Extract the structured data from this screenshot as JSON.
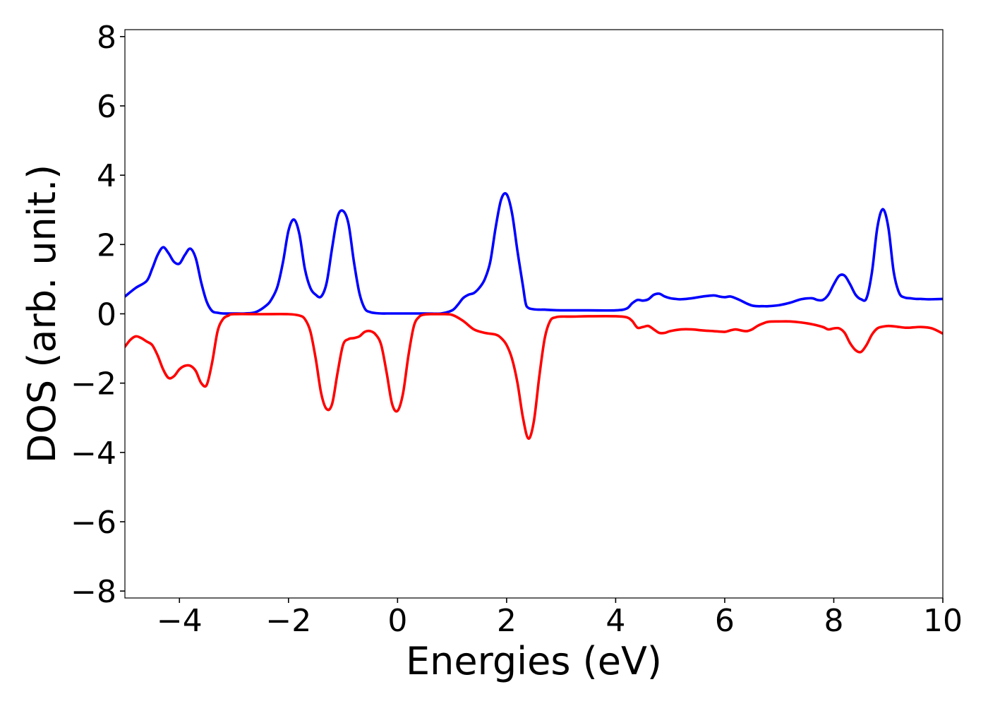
{
  "chart_data": {
    "type": "line",
    "title": "",
    "xlabel": "Energies (eV)",
    "ylabel": "DOS (arb. unit.)",
    "xlim": [
      -5,
      10
    ],
    "ylim": [
      -8.2,
      8.2
    ],
    "grid": false,
    "legend": "none",
    "xticks": [
      -4,
      -2,
      0,
      2,
      4,
      6,
      8,
      10
    ],
    "xtick_labels": [
      "−4",
      "−2",
      "0",
      "2",
      "4",
      "6",
      "8",
      "10"
    ],
    "yticks": [
      -8,
      -6,
      -4,
      -2,
      0,
      2,
      4,
      6,
      8
    ],
    "ytick_labels": [
      "−8",
      "−6",
      "−4",
      "−2",
      "0",
      "2",
      "4",
      "6",
      "8"
    ],
    "series": [
      {
        "color": "#0000ff",
        "x": [
          -5.0,
          -4.8,
          -4.6,
          -4.5,
          -4.4,
          -4.3,
          -4.2,
          -4.1,
          -4.0,
          -3.9,
          -3.8,
          -3.7,
          -3.6,
          -3.5,
          -3.4,
          -3.3,
          -3.2,
          -3.1,
          -3.0,
          -2.8,
          -2.6,
          -2.4,
          -2.3,
          -2.2,
          -2.1,
          -2.0,
          -1.9,
          -1.8,
          -1.7,
          -1.6,
          -1.5,
          -1.4,
          -1.3,
          -1.2,
          -1.1,
          -1.0,
          -0.9,
          -0.8,
          -0.7,
          -0.6,
          -0.5,
          -0.4,
          -0.3,
          -0.2,
          -0.1,
          0.0,
          0.5,
          0.8,
          1.0,
          1.1,
          1.2,
          1.3,
          1.4,
          1.5,
          1.6,
          1.7,
          1.8,
          1.9,
          2.0,
          2.1,
          2.2,
          2.3,
          2.35,
          2.4,
          2.5,
          2.6,
          2.7,
          2.8,
          3.0,
          3.5,
          4.0,
          4.2,
          4.3,
          4.4,
          4.5,
          4.6,
          4.7,
          4.8,
          4.9,
          5.0,
          5.1,
          5.2,
          5.4,
          5.6,
          5.8,
          5.9,
          6.0,
          6.1,
          6.2,
          6.3,
          6.4,
          6.5,
          6.6,
          6.7,
          6.8,
          7.0,
          7.2,
          7.4,
          7.6,
          7.7,
          7.8,
          7.9,
          8.0,
          8.1,
          8.2,
          8.3,
          8.4,
          8.5,
          8.6,
          8.7,
          8.8,
          8.9,
          9.0,
          9.1,
          9.2,
          9.3,
          9.4,
          9.5,
          9.6,
          9.7,
          9.8,
          10.0
        ],
        "y": [
          0.5,
          0.75,
          0.95,
          1.3,
          1.7,
          1.92,
          1.75,
          1.5,
          1.45,
          1.7,
          1.88,
          1.6,
          0.9,
          0.35,
          0.08,
          0.03,
          0.01,
          0.01,
          0.01,
          0.01,
          0.05,
          0.25,
          0.45,
          0.8,
          1.5,
          2.4,
          2.72,
          2.3,
          1.3,
          0.75,
          0.55,
          0.5,
          0.9,
          1.9,
          2.8,
          2.97,
          2.6,
          1.5,
          0.6,
          0.15,
          0.05,
          0.02,
          0.01,
          0.01,
          0.01,
          0.01,
          0.01,
          0.01,
          0.1,
          0.25,
          0.45,
          0.55,
          0.6,
          0.75,
          1.0,
          1.5,
          2.5,
          3.3,
          3.45,
          2.9,
          1.8,
          0.8,
          0.3,
          0.17,
          0.13,
          0.12,
          0.12,
          0.11,
          0.1,
          0.1,
          0.1,
          0.15,
          0.3,
          0.4,
          0.38,
          0.42,
          0.55,
          0.58,
          0.5,
          0.45,
          0.43,
          0.42,
          0.45,
          0.5,
          0.53,
          0.5,
          0.48,
          0.5,
          0.45,
          0.38,
          0.3,
          0.24,
          0.22,
          0.22,
          0.22,
          0.25,
          0.32,
          0.42,
          0.45,
          0.4,
          0.4,
          0.55,
          0.85,
          1.1,
          1.1,
          0.85,
          0.55,
          0.42,
          0.45,
          1.2,
          2.5,
          3.02,
          2.5,
          1.2,
          0.6,
          0.47,
          0.45,
          0.43,
          0.43,
          0.42,
          0.42,
          0.43
        ],
        "x_note": ""
      },
      {
        "color": "#ff0000",
        "x": [
          -5.0,
          -4.9,
          -4.8,
          -4.7,
          -4.6,
          -4.5,
          -4.4,
          -4.3,
          -4.2,
          -4.1,
          -4.0,
          -3.9,
          -3.8,
          -3.7,
          -3.6,
          -3.5,
          -3.4,
          -3.3,
          -3.2,
          -3.1,
          -3.0,
          -2.5,
          -2.0,
          -1.8,
          -1.7,
          -1.6,
          -1.5,
          -1.4,
          -1.3,
          -1.2,
          -1.1,
          -1.0,
          -0.9,
          -0.8,
          -0.7,
          -0.6,
          -0.5,
          -0.4,
          -0.3,
          -0.2,
          -0.1,
          0.0,
          0.1,
          0.2,
          0.3,
          0.4,
          0.5,
          0.6,
          0.7,
          0.8,
          1.0,
          1.2,
          1.4,
          1.6,
          1.8,
          1.9,
          2.0,
          2.1,
          2.2,
          2.3,
          2.4,
          2.5,
          2.6,
          2.7,
          2.8,
          2.9,
          3.0,
          3.2,
          3.5,
          4.0,
          4.2,
          4.3,
          4.4,
          4.5,
          4.6,
          4.7,
          4.8,
          4.9,
          5.0,
          5.2,
          5.4,
          5.6,
          5.8,
          6.0,
          6.1,
          6.2,
          6.3,
          6.4,
          6.5,
          6.6,
          6.7,
          6.8,
          7.0,
          7.2,
          7.4,
          7.6,
          7.8,
          7.9,
          8.0,
          8.1,
          8.2,
          8.3,
          8.4,
          8.5,
          8.6,
          8.7,
          8.8,
          8.9,
          9.0,
          9.1,
          9.2,
          9.3,
          9.4,
          9.6,
          9.8,
          10.0
        ],
        "y": [
          -0.95,
          -0.75,
          -0.65,
          -0.7,
          -0.8,
          -0.9,
          -1.2,
          -1.6,
          -1.85,
          -1.8,
          -1.6,
          -1.5,
          -1.5,
          -1.65,
          -2.0,
          -2.05,
          -1.4,
          -0.5,
          -0.15,
          -0.05,
          -0.01,
          -0.01,
          -0.01,
          -0.05,
          -0.15,
          -0.5,
          -1.3,
          -2.3,
          -2.75,
          -2.6,
          -1.7,
          -0.9,
          -0.73,
          -0.7,
          -0.65,
          -0.52,
          -0.5,
          -0.6,
          -0.9,
          -1.7,
          -2.6,
          -2.8,
          -2.3,
          -1.2,
          -0.35,
          -0.08,
          -0.02,
          -0.01,
          -0.01,
          -0.01,
          -0.03,
          -0.2,
          -0.45,
          -0.55,
          -0.6,
          -0.7,
          -0.9,
          -1.3,
          -2.0,
          -3.0,
          -3.6,
          -3.1,
          -1.8,
          -0.7,
          -0.2,
          -0.1,
          -0.08,
          -0.08,
          -0.07,
          -0.07,
          -0.1,
          -0.2,
          -0.4,
          -0.38,
          -0.35,
          -0.45,
          -0.55,
          -0.55,
          -0.5,
          -0.45,
          -0.45,
          -0.48,
          -0.5,
          -0.52,
          -0.48,
          -0.45,
          -0.48,
          -0.5,
          -0.45,
          -0.35,
          -0.28,
          -0.23,
          -0.22,
          -0.22,
          -0.25,
          -0.3,
          -0.38,
          -0.45,
          -0.42,
          -0.42,
          -0.55,
          -0.85,
          -1.05,
          -1.1,
          -0.9,
          -0.6,
          -0.42,
          -0.37,
          -0.35,
          -0.36,
          -0.38,
          -0.4,
          -0.4,
          -0.38,
          -0.42,
          -0.57
        ]
      }
    ]
  }
}
